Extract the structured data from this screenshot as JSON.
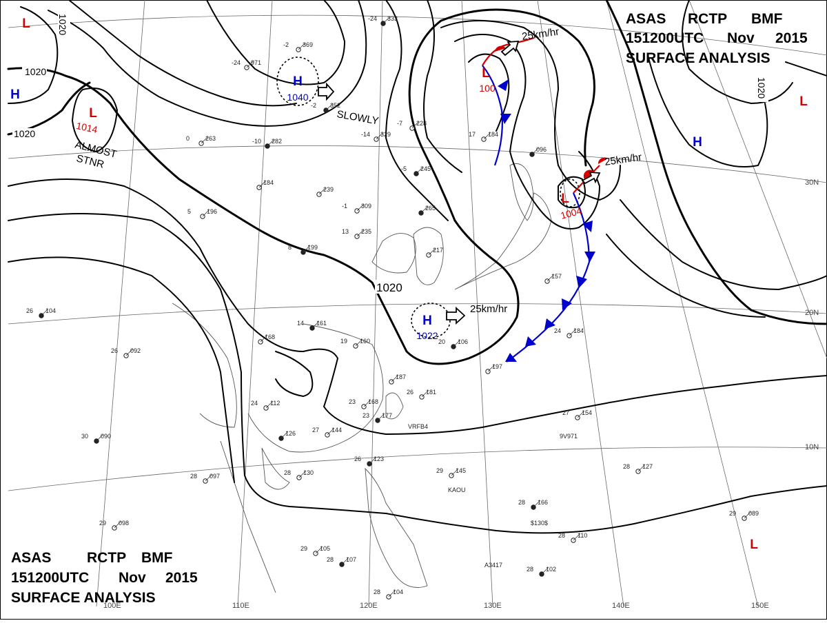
{
  "header": {
    "line1": [
      "ASAS",
      "RCTP",
      "BMF"
    ],
    "line2": [
      "151200UTC",
      "Nov",
      "2015"
    ],
    "line3": "SURFACE  ANALYSIS"
  },
  "isobar_labels": [
    "1020",
    "1020",
    "1020",
    "1020",
    "1020"
  ],
  "centers": [
    {
      "type": "H",
      "value": "1040",
      "motion": "SLOWLY"
    },
    {
      "type": "H",
      "value": "1022",
      "motion": "25km/hr"
    },
    {
      "type": "L",
      "value": "1014",
      "motion": "ALMOST STNR"
    },
    {
      "type": "L",
      "value": "1004",
      "motion": "25km/hr"
    },
    {
      "type": "L",
      "value": "100",
      "motion": "25km/hr"
    },
    {
      "type": "H",
      "value": ""
    },
    {
      "type": "H",
      "value": ""
    },
    {
      "type": "L",
      "value": ""
    },
    {
      "type": "L",
      "value": ""
    },
    {
      "type": "L",
      "value": ""
    }
  ],
  "stationary_note": [
    "ALMOST",
    "STNR"
  ],
  "longitudes": [
    "100E",
    "110E",
    "120E",
    "130E",
    "140E",
    "150E"
  ],
  "latitudes": [
    "30N",
    "20N",
    "10N"
  ],
  "station_obs": [
    {
      "t": "-24",
      "p": "333"
    },
    {
      "t": "-24",
      "p": "971"
    },
    {
      "t": "-2",
      "p": "369"
    },
    {
      "t": "-2",
      "p": "352"
    },
    {
      "t": "-7",
      "p": "228"
    },
    {
      "t": "-14",
      "p": "329"
    },
    {
      "t": "-10",
      "p": "282"
    },
    {
      "t": "0",
      "p": "263"
    },
    {
      "t": "",
      "p": "184"
    },
    {
      "t": "-5",
      "p": "245"
    },
    {
      "t": "",
      "p": "239"
    },
    {
      "t": "-1",
      "p": "309"
    },
    {
      "t": "",
      "p": "265"
    },
    {
      "t": "13",
      "p": "235"
    },
    {
      "t": "",
      "p": "217"
    },
    {
      "t": "8",
      "p": "199"
    },
    {
      "t": "5",
      "p": "196"
    },
    {
      "t": "",
      "p": "187"
    },
    {
      "t": "14",
      "p": "161"
    },
    {
      "t": "",
      "p": "168"
    },
    {
      "t": "19",
      "p": "160"
    },
    {
      "t": "20",
      "p": "106"
    },
    {
      "t": "",
      "p": "197"
    },
    {
      "t": "24",
      "p": "184"
    },
    {
      "t": "26",
      "p": "104"
    },
    {
      "t": "26",
      "p": "092"
    },
    {
      "t": "24",
      "p": "112"
    },
    {
      "t": "",
      "p": "126"
    },
    {
      "t": "27",
      "p": "144"
    },
    {
      "t": "27",
      "p": "154"
    },
    {
      "t": "30",
      "p": "090"
    },
    {
      "t": "28",
      "p": "097"
    },
    {
      "t": "28",
      "p": "130"
    },
    {
      "t": "26",
      "p": "123"
    },
    {
      "t": "29",
      "p": "145"
    },
    {
      "t": "28",
      "p": "127"
    },
    {
      "t": "28",
      "p": "166"
    },
    {
      "t": "29",
      "p": "098"
    },
    {
      "t": "29",
      "p": "105"
    },
    {
      "t": "28",
      "p": "107"
    },
    {
      "t": "28",
      "p": "104"
    },
    {
      "t": "28",
      "p": "110"
    },
    {
      "t": "28",
      "p": "102"
    },
    {
      "t": "29",
      "p": "089"
    },
    {
      "t": "",
      "p": "157"
    },
    {
      "t": "",
      "p": "096"
    },
    {
      "t": "17",
      "p": "184"
    },
    {
      "t": "23",
      "p": "168"
    },
    {
      "t": "23",
      "p": "177"
    },
    {
      "t": "26",
      "p": "181"
    }
  ],
  "station_ids": [
    "VRFB4",
    "9V971",
    "KAOU",
    "$130$",
    "A3417"
  ]
}
